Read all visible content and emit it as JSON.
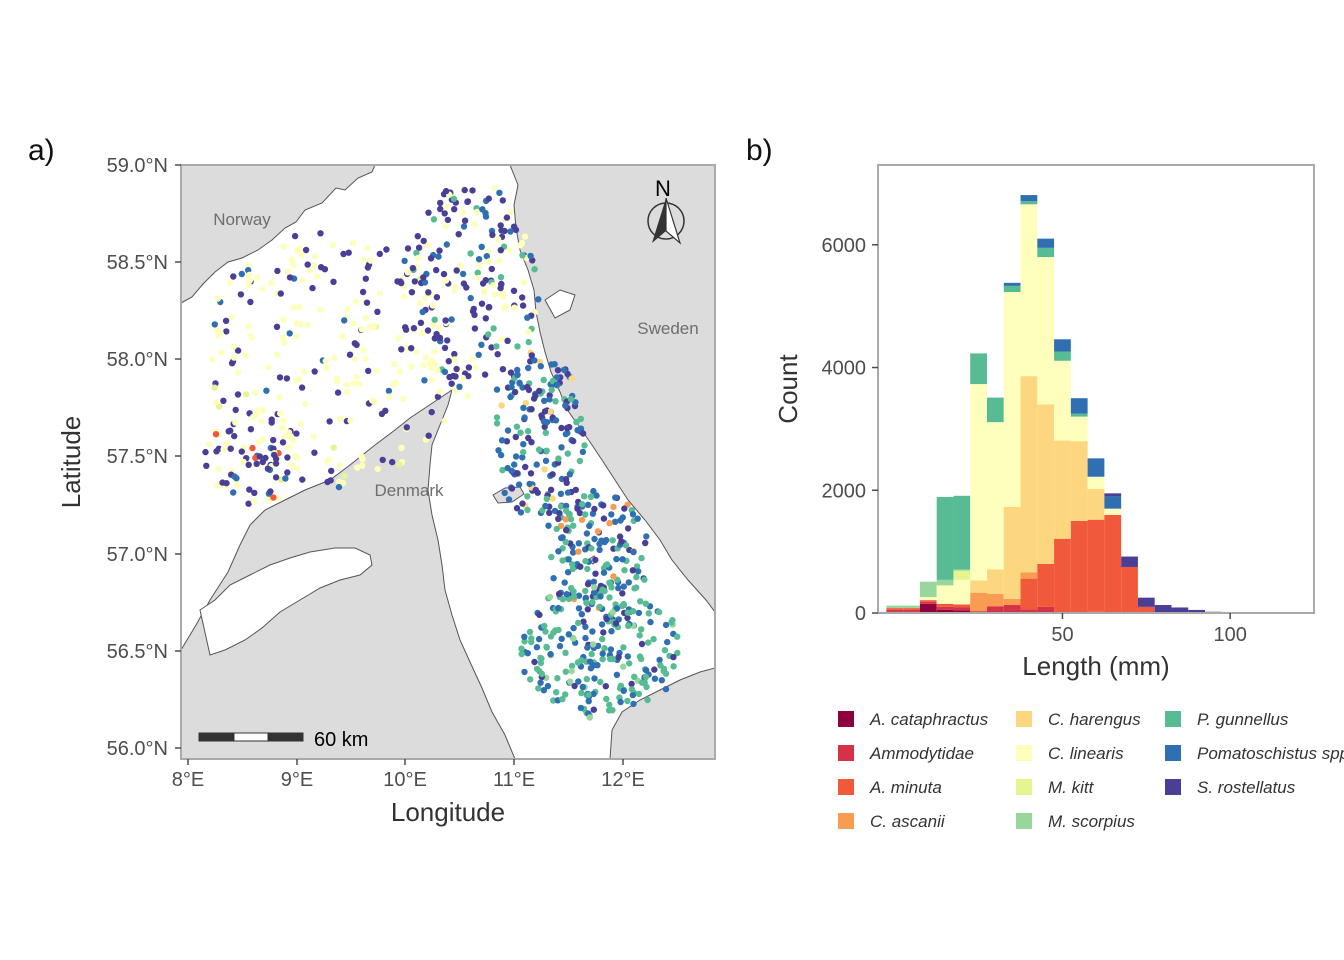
{
  "figure": {
    "panel_a_label": "a)",
    "panel_b_label": "b)"
  },
  "colors": {
    "A. cataphractus": "#8e0040",
    "Ammodytidae": "#d53147",
    "A. minuta": "#f05a3a",
    "C. ascanii": "#fa9b52",
    "C. harengus": "#fdd77f",
    "C. linearis": "#ffffbd",
    "M. kitt": "#e6f592",
    "M. scorpius": "#98d69b",
    "P. gunnellus": "#57bb93",
    "Pomatoschistus spp.": "#2f70b3",
    "S. rostellatus": "#4a3f97"
  },
  "map": {
    "xlabel": "Longitude",
    "ylabel": "Latitude",
    "x_ticks": [
      "8°E",
      "9°E",
      "10°E",
      "11°E",
      "12°E"
    ],
    "y_ticks": [
      "56.0°N",
      "56.5°N",
      "57.0°N",
      "57.5°N",
      "58.0°N",
      "58.5°N",
      "59.0°N"
    ],
    "countries": [
      "Norway",
      "Sweden",
      "Denmark"
    ],
    "north_label": "N",
    "scale_label": "60 km",
    "land_color": "#dcdcdc",
    "sea_color": "#ffffff"
  },
  "chart_data": {
    "type": "bar",
    "stacked": true,
    "xlabel": "Length (mm)",
    "ylabel": "Count",
    "x_ticks": [
      50,
      100
    ],
    "y_ticks": [
      0,
      2000,
      4000,
      6000
    ],
    "ylim": [
      0,
      7300
    ],
    "xlim": [
      -5,
      125
    ],
    "bin_width": 5,
    "bin_centers": [
      0,
      5,
      10,
      15,
      20,
      25,
      30,
      35,
      40,
      45,
      50,
      55,
      60,
      65,
      70,
      75,
      80,
      85,
      90,
      95,
      100,
      105,
      110,
      115
    ],
    "legend_position": "bottom",
    "series": [
      {
        "name": "A. cataphractus",
        "values": [
          20,
          20,
          150,
          50,
          40,
          0,
          10,
          0,
          0,
          0,
          0,
          0,
          0,
          0,
          0,
          0,
          0,
          0,
          0,
          0,
          0,
          0,
          0,
          0
        ]
      },
      {
        "name": "Ammodytidae",
        "values": [
          30,
          30,
          30,
          50,
          50,
          30,
          100,
          130,
          60,
          100,
          10,
          0,
          20,
          0,
          0,
          0,
          0,
          0,
          0,
          0,
          0,
          0,
          0,
          0
        ]
      },
      {
        "name": "A. minuta",
        "values": [
          30,
          30,
          30,
          50,
          50,
          0,
          0,
          0,
          500,
          700,
          1200,
          1500,
          1500,
          1600,
          750,
          100,
          0,
          0,
          0,
          0,
          0,
          0,
          0,
          0
        ]
      },
      {
        "name": "C. ascanii",
        "values": [
          0,
          0,
          0,
          0,
          0,
          300,
          200,
          100,
          100,
          0,
          0,
          0,
          0,
          0,
          0,
          0,
          0,
          0,
          0,
          0,
          0,
          0,
          0,
          0
        ]
      },
      {
        "name": "C. harengus",
        "values": [
          0,
          0,
          0,
          0,
          0,
          200,
          400,
          1500,
          3200,
          2600,
          1600,
          1300,
          500,
          0,
          0,
          0,
          0,
          0,
          0,
          0,
          0,
          0,
          0,
          0
        ]
      },
      {
        "name": "C. linearis",
        "values": [
          0,
          0,
          50,
          300,
          400,
          3200,
          2400,
          3500,
          2800,
          2400,
          1300,
          400,
          200,
          100,
          0,
          0,
          0,
          0,
          0,
          0,
          0,
          0,
          0,
          0
        ]
      },
      {
        "name": "M. kitt",
        "values": [
          0,
          0,
          0,
          0,
          150,
          0,
          0,
          0,
          0,
          0,
          0,
          0,
          0,
          0,
          0,
          0,
          0,
          0,
          0,
          0,
          0,
          0,
          0,
          0
        ]
      },
      {
        "name": "M. scorpius",
        "values": [
          40,
          40,
          250,
          90,
          20,
          0,
          0,
          0,
          0,
          0,
          0,
          0,
          0,
          0,
          0,
          0,
          0,
          0,
          0,
          0,
          0,
          0,
          0,
          0
        ]
      },
      {
        "name": "P. gunnellus",
        "values": [
          0,
          0,
          0,
          1350,
          1200,
          500,
          400,
          100,
          50,
          150,
          150,
          50,
          0,
          0,
          0,
          0,
          0,
          0,
          0,
          0,
          0,
          0,
          0,
          0
        ]
      },
      {
        "name": "Pomatoschistus spp.",
        "values": [
          0,
          0,
          0,
          0,
          0,
          0,
          0,
          50,
          100,
          150,
          200,
          250,
          300,
          200,
          0,
          0,
          0,
          0,
          0,
          0,
          0,
          0,
          0,
          0
        ]
      },
      {
        "name": "S. rostellatus",
        "values": [
          0,
          0,
          0,
          0,
          0,
          0,
          0,
          0,
          0,
          0,
          0,
          0,
          0,
          50,
          170,
          150,
          130,
          90,
          50,
          20,
          10,
          10,
          5,
          5
        ]
      }
    ]
  }
}
